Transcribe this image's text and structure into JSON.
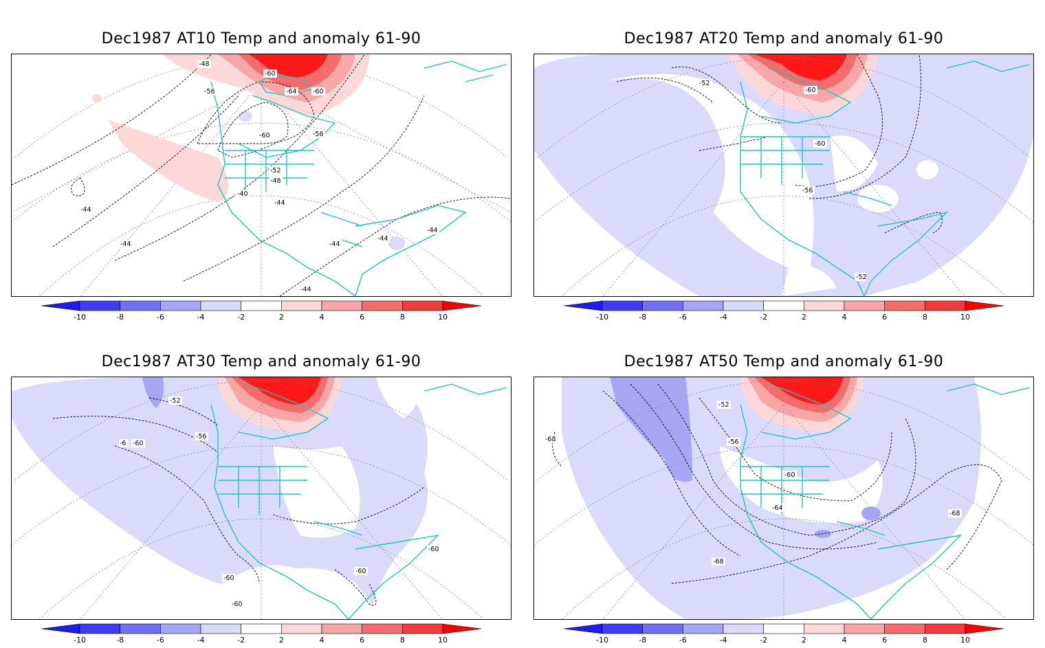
{
  "colorbar": {
    "ticks": [
      "-10",
      "-8",
      "-6",
      "-4",
      "-2",
      "2",
      "4",
      "6",
      "8",
      "10"
    ],
    "colors": [
      "#1d1df2",
      "#3d3df6",
      "#7070f5",
      "#a6a6f5",
      "#dadafa",
      "#ffffff",
      "#fdd8d8",
      "#f9a6a6",
      "#f66c6c",
      "#f23b3b",
      "#ff0000"
    ]
  },
  "palette": {
    "coast": "#1cc4c4",
    "contour": "#000000",
    "graticule": "#888888",
    "pos_anomaly": [
      "#fdd8d8",
      "#f9a6a6",
      "#f66c6c",
      "#ff1818"
    ],
    "neg_anomaly": [
      "#dadafa",
      "#a6a6f5",
      "#7070f5"
    ]
  },
  "panels": [
    {
      "title": "Dec1987 AT10 Temp and anomaly 61-90",
      "contour_labels": [
        "-48",
        "-56",
        "-60",
        "-64",
        "-60",
        "-60",
        "-56",
        "-52",
        "-48",
        "-40",
        "-44",
        "-44",
        "-44",
        "-44",
        "-44",
        "-44",
        "-44"
      ]
    },
    {
      "title": "Dec1987 AT20 Temp and anomaly 61-90",
      "contour_labels": [
        "-52",
        "-60",
        "-60",
        "-56",
        "-52"
      ]
    },
    {
      "title": "Dec1987 AT30 Temp and anomaly 61-90",
      "contour_labels": [
        "-52",
        "-56",
        "-6",
        "-60",
        "-60",
        "-60",
        "-60",
        "-60"
      ]
    },
    {
      "title": "Dec1987 AT50 Temp and anomaly 61-90",
      "contour_labels": [
        "-52",
        "-56",
        "-68",
        "-60",
        "-64",
        "-68",
        "-68"
      ]
    }
  ]
}
